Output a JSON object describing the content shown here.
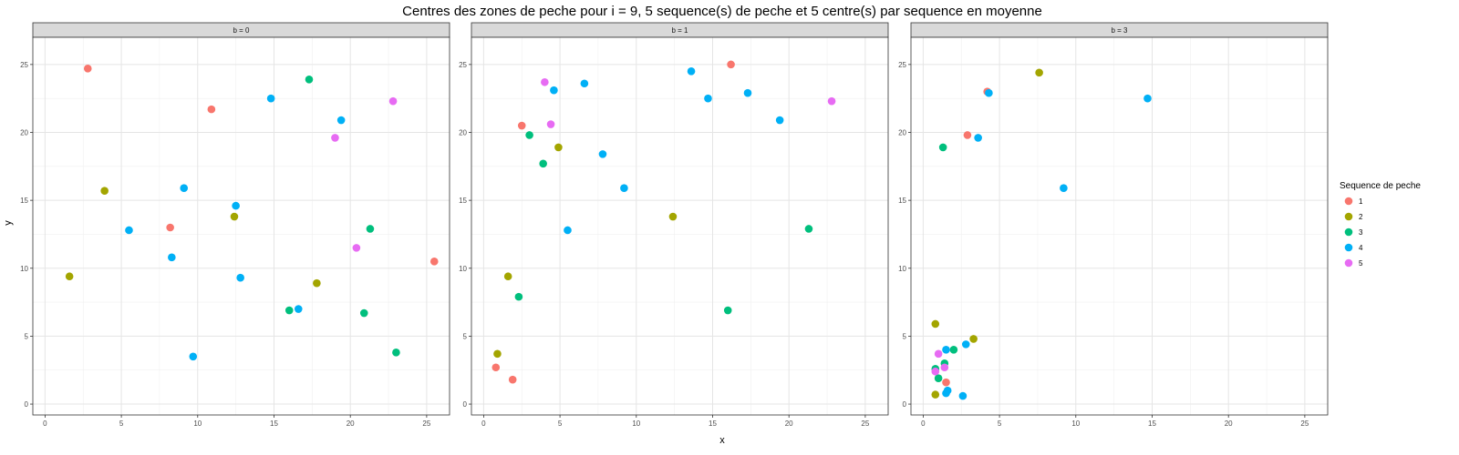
{
  "chart_data": {
    "type": "scatter",
    "title": "Centres des zones de peche pour i = 9, 5 sequence(s) de peche et 5 centre(s) par sequence en moyenne",
    "xlabel": "x",
    "ylabel": "y",
    "xlim": [
      -0.8,
      26.5
    ],
    "ylim": [
      -0.8,
      27.0
    ],
    "x_ticks": [
      "0",
      "5",
      "10",
      "15",
      "20",
      "25"
    ],
    "y_ticks": [
      "0",
      "5",
      "10",
      "15",
      "20",
      "25"
    ],
    "grid": true,
    "legend": {
      "title": "Sequence de peche",
      "placement": "right",
      "entries": [
        {
          "label": "1",
          "color": "#F8766D"
        },
        {
          "label": "2",
          "color": "#A3A500"
        },
        {
          "label": "3",
          "color": "#00BF7D"
        },
        {
          "label": "4",
          "color": "#00B0F6"
        },
        {
          "label": "5",
          "color": "#E76BF3"
        }
      ]
    },
    "panels": [
      {
        "strip": "b = 0",
        "series": [
          {
            "name": "1",
            "points": [
              [
                2.8,
                24.7
              ],
              [
                10.9,
                21.7
              ],
              [
                8.2,
                13.0
              ],
              [
                25.5,
                10.5
              ]
            ]
          },
          {
            "name": "2",
            "points": [
              [
                3.9,
                15.7
              ],
              [
                1.6,
                9.4
              ],
              [
                12.4,
                13.8
              ],
              [
                17.8,
                8.9
              ]
            ]
          },
          {
            "name": "3",
            "points": [
              [
                17.3,
                23.9
              ],
              [
                21.3,
                12.9
              ],
              [
                16.0,
                6.9
              ],
              [
                20.9,
                6.7
              ],
              [
                23.0,
                3.8
              ]
            ]
          },
          {
            "name": "4",
            "points": [
              [
                14.8,
                22.5
              ],
              [
                19.4,
                20.9
              ],
              [
                9.1,
                15.9
              ],
              [
                12.5,
                14.6
              ],
              [
                5.5,
                12.8
              ],
              [
                8.3,
                10.8
              ],
              [
                12.8,
                9.3
              ],
              [
                16.6,
                7.0
              ],
              [
                9.7,
                3.5
              ]
            ]
          },
          {
            "name": "5",
            "points": [
              [
                22.8,
                22.3
              ],
              [
                19.0,
                19.6
              ],
              [
                20.4,
                11.5
              ]
            ]
          }
        ]
      },
      {
        "strip": "b = 1",
        "series": [
          {
            "name": "1",
            "points": [
              [
                16.2,
                25.0
              ],
              [
                2.5,
                20.5
              ],
              [
                0.8,
                2.7
              ],
              [
                1.9,
                1.8
              ]
            ]
          },
          {
            "name": "2",
            "points": [
              [
                4.9,
                18.9
              ],
              [
                12.4,
                13.8
              ],
              [
                1.6,
                9.4
              ],
              [
                0.9,
                3.7
              ]
            ]
          },
          {
            "name": "3",
            "points": [
              [
                3.0,
                19.8
              ],
              [
                3.9,
                17.7
              ],
              [
                21.3,
                12.9
              ],
              [
                2.3,
                7.9
              ],
              [
                16.0,
                6.9
              ]
            ]
          },
          {
            "name": "4",
            "points": [
              [
                13.6,
                24.5
              ],
              [
                6.6,
                23.6
              ],
              [
                4.6,
                23.1
              ],
              [
                14.7,
                22.5
              ],
              [
                17.3,
                22.9
              ],
              [
                19.4,
                20.9
              ],
              [
                7.8,
                18.4
              ],
              [
                9.2,
                15.9
              ],
              [
                5.5,
                12.8
              ]
            ]
          },
          {
            "name": "5",
            "points": [
              [
                4.0,
                23.7
              ],
              [
                4.4,
                20.6
              ],
              [
                22.8,
                22.3
              ]
            ]
          }
        ]
      },
      {
        "strip": "b = 3",
        "series": [
          {
            "name": "1",
            "points": [
              [
                4.2,
                23.0
              ],
              [
                2.9,
                19.8
              ],
              [
                1.5,
                1.6
              ]
            ]
          },
          {
            "name": "2",
            "points": [
              [
                7.6,
                24.4
              ],
              [
                0.8,
                5.9
              ],
              [
                3.3,
                4.8
              ],
              [
                0.8,
                0.7
              ]
            ]
          },
          {
            "name": "3",
            "points": [
              [
                1.3,
                18.9
              ],
              [
                2.0,
                4.0
              ],
              [
                1.4,
                3.0
              ],
              [
                0.8,
                2.6
              ],
              [
                1.0,
                1.9
              ]
            ]
          },
          {
            "name": "4",
            "points": [
              [
                14.7,
                22.5
              ],
              [
                4.3,
                22.9
              ],
              [
                3.6,
                19.6
              ],
              [
                9.2,
                15.9
              ],
              [
                2.8,
                4.4
              ],
              [
                1.5,
                4.0
              ],
              [
                1.6,
                1.0
              ],
              [
                1.5,
                0.8
              ],
              [
                2.6,
                0.6
              ]
            ]
          },
          {
            "name": "5",
            "points": [
              [
                1.0,
                3.7
              ],
              [
                1.4,
                2.7
              ],
              [
                0.8,
                2.4
              ]
            ]
          }
        ]
      }
    ]
  }
}
